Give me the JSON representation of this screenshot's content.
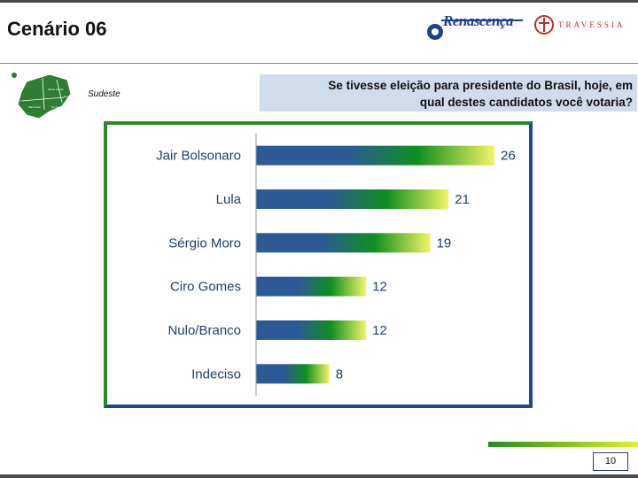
{
  "header": {
    "title": "Cenário 06",
    "logo_primary": "Renascença",
    "logo_secondary": "TRAVESSIA"
  },
  "region_label": "Sudeste",
  "map_labels": [
    "Minas Gerais",
    "São Paulo",
    "Rio de Janeiro",
    "Espírito Santo"
  ],
  "question": {
    "line1": "Se tivesse eleição para presidente do Brasil, hoje, em",
    "line2": "qual destes candidatos você votaria?"
  },
  "chart_data": {
    "type": "bar",
    "orientation": "horizontal",
    "categories": [
      "Jair Bolsonaro",
      "Lula",
      "Sérgio Moro",
      "Ciro Gomes",
      "Nulo/Branco",
      "Indeciso"
    ],
    "values": [
      26,
      21,
      19,
      12,
      12,
      8
    ],
    "data_labels": true,
    "gradient_colors": [
      "#2c5a96",
      "#0f8f1f",
      "#f2f566"
    ],
    "label_color": "#1f3f6f"
  },
  "footer": {
    "page_number": "10"
  }
}
